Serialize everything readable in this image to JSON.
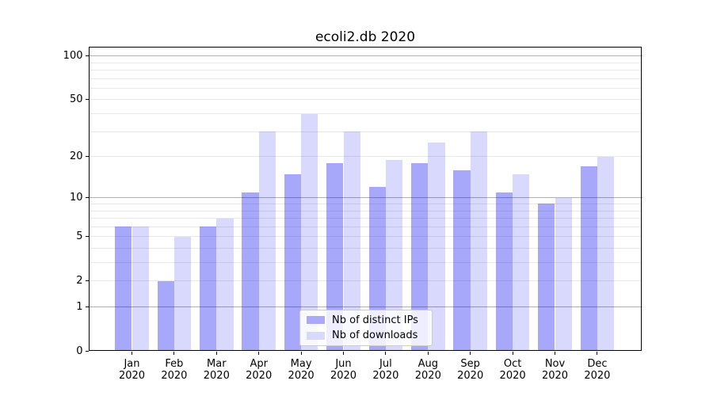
{
  "chart_data": {
    "type": "bar",
    "title": "ecoli2.db 2020",
    "categories": [
      "Jan 2020",
      "Feb 2020",
      "Mar 2020",
      "Apr 2020",
      "May 2020",
      "Jun 2020",
      "Jul 2020",
      "Aug 2020",
      "Sep 2020",
      "Oct 2020",
      "Nov 2020",
      "Dec 2020"
    ],
    "series": [
      {
        "name": "Nb of distinct IPs",
        "values": [
          6,
          2,
          6,
          11,
          15,
          18,
          12,
          18,
          16,
          11,
          9,
          17
        ],
        "fill": "rgba(0,0,240,0.34)",
        "legend_color": "#aaaaf9"
      },
      {
        "name": "Nb of downloads",
        "values": [
          6,
          5,
          7,
          30,
          40,
          30,
          19,
          25,
          30,
          15,
          10,
          20
        ],
        "fill": "rgba(0,0,240,0.15)",
        "legend_color": "#d9d9fb"
      }
    ],
    "xlabel": "",
    "ylabel": "",
    "yscale": "log1p",
    "ylim": [
      0,
      115
    ],
    "yticks": [
      0,
      1,
      2,
      5,
      10,
      20,
      50,
      100
    ],
    "ytick_labels": [
      "0",
      "1",
      "2",
      "5",
      "10",
      "20",
      "50",
      "100"
    ],
    "major_gridlines": [
      1,
      10,
      100
    ],
    "minor_gridlines": [
      2,
      3,
      4,
      5,
      6,
      7,
      8,
      9,
      20,
      30,
      40,
      50,
      60,
      70,
      80,
      90
    ],
    "grid": true,
    "legend": {
      "labels": [
        "Nb of distinct IPs",
        "Nb of downloads"
      ],
      "position": "lower center"
    },
    "colors": {
      "background": "#ffffff",
      "text": "#000000",
      "axis": "#000000",
      "major_grid": "#b0b0b0",
      "minor_grid": "#e8e8e8",
      "legend_border": "#cccccc",
      "legend_bg": "rgba(255,255,255,0.8)"
    }
  }
}
